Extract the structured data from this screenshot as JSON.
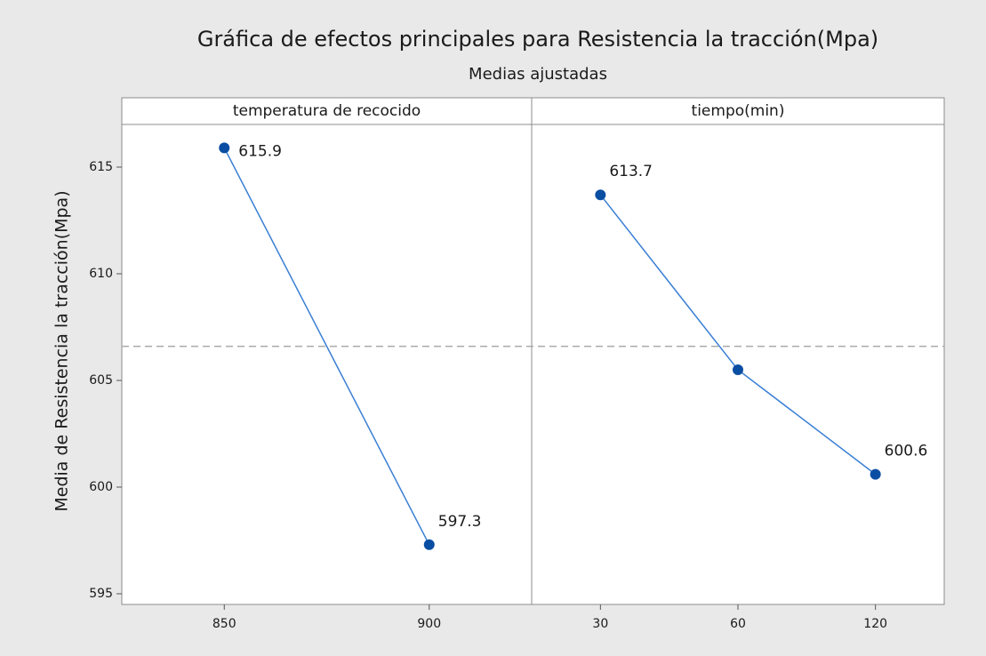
{
  "chart_data": {
    "type": "line",
    "title": "Gráfica de efectos principales para Resistencia la tracción(Mpa)",
    "subtitle": "Medias ajustadas",
    "ylabel": "Media de Resistencia la tracción(Mpa)",
    "ylim": [
      594.5,
      617
    ],
    "yticks": [
      595,
      600,
      605,
      610,
      615
    ],
    "reference_line": 606.6,
    "line_color": "#3a7fd4",
    "marker_color": "#0a4ea3",
    "panels": [
      {
        "title": "temperatura de recocido",
        "categories": [
          "850",
          "900"
        ],
        "values": [
          615.9,
          597.3
        ]
      },
      {
        "title": "tiempo(min)",
        "categories": [
          "30",
          "60",
          "120"
        ],
        "values": [
          613.7,
          605.5,
          600.6
        ],
        "value_labels": [
          "613.7",
          null,
          "600.6"
        ]
      }
    ]
  }
}
